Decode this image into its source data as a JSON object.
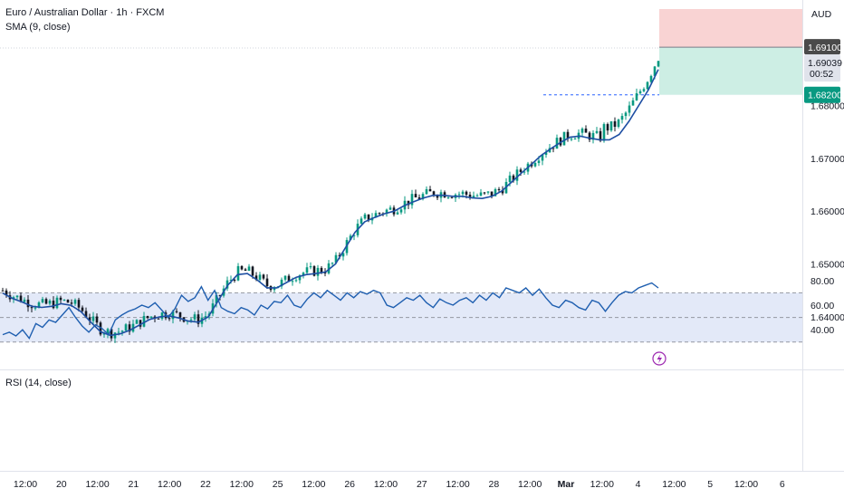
{
  "header": {
    "title": "Euro / Australian Dollar · 1h · FXCM",
    "indicator": "SMA (9, close)",
    "currency": "AUD"
  },
  "rsi": {
    "label": "RSI (14, close)",
    "ticks": [
      80,
      60,
      40
    ],
    "tick_labels": [
      "80.00",
      "60.00",
      "40.00"
    ],
    "upper": 70,
    "middle": 50,
    "lower": 30
  },
  "price_axis": {
    "ticks": [
      1.64,
      1.65,
      1.66,
      1.67,
      1.68
    ],
    "tick_labels": [
      "1.64000",
      "1.65000",
      "1.66000",
      "1.67000",
      "1.68000"
    ]
  },
  "badges": {
    "target": "1.69100",
    "current": "1.69039",
    "countdown": "00:52",
    "stop": "1.68200"
  },
  "time_axis": {
    "labels": [
      "12:00",
      "20",
      "12:00",
      "21",
      "12:00",
      "22",
      "12:00",
      "25",
      "12:00",
      "26",
      "12:00",
      "27",
      "12:00",
      "28",
      "12:00",
      "Mar",
      "12:00",
      "4",
      "12:00",
      "5",
      "12:00",
      "6"
    ]
  },
  "colors": {
    "up": "#089981",
    "down": "#131722",
    "sma": "#1e4fa3",
    "rsi_line": "#1f5fb0",
    "rsi_band": "#e3e9f8",
    "target_zone": "#f9d3d3",
    "stop_zone": "#cdeee4",
    "stop_badge": "#089981",
    "target_badge": "#4a4a4a",
    "marker": "#9c27b0"
  },
  "chart_data": [
    {
      "type": "line",
      "series": [
        {
          "name": "SMA (9, close)",
          "values": [
            1.6445,
            1.6435,
            1.6428,
            1.642,
            1.6418,
            1.642,
            1.6425,
            1.6422,
            1.641,
            1.639,
            1.6372,
            1.6365,
            1.6368,
            1.6375,
            1.6385,
            1.6395,
            1.64,
            1.6402,
            1.6398,
            1.6392,
            1.639,
            1.64,
            1.643,
            1.646,
            1.648,
            1.6482,
            1.647,
            1.6455,
            1.6455,
            1.6465,
            1.6475,
            1.648,
            1.6482,
            1.6485,
            1.65,
            1.653,
            1.656,
            1.658,
            1.6588,
            1.6595,
            1.66,
            1.661,
            1.6618,
            1.6625,
            1.663,
            1.663,
            1.6628,
            1.6628,
            1.6625,
            1.6624,
            1.6628,
            1.6638,
            1.6655,
            1.6672,
            1.6688,
            1.6705,
            1.6718,
            1.673,
            1.674,
            1.6742,
            1.6738,
            1.6735,
            1.6735,
            1.6745,
            1.677,
            1.68,
            1.683,
            1.6868
          ]
        }
      ]
    },
    {
      "type": "line",
      "title": "RSI (14, close)",
      "ylim": [
        30,
        85
      ],
      "series": [
        {
          "name": "RSI (14, close)",
          "values": [
            36,
            38,
            35,
            40,
            33,
            45,
            42,
            48,
            46,
            52,
            58,
            50,
            43,
            38,
            44,
            41,
            36,
            48,
            52,
            55,
            57,
            60,
            58,
            62,
            56,
            50,
            57,
            68,
            63,
            66,
            75,
            64,
            72,
            58,
            55,
            53,
            58,
            56,
            52,
            60,
            57,
            63,
            62,
            68,
            60,
            58,
            65,
            70,
            66,
            72,
            68,
            64,
            70,
            66,
            71,
            69,
            72,
            70,
            60,
            58,
            62,
            66,
            64,
            68,
            62,
            58,
            65,
            62,
            60,
            64,
            66,
            62,
            68,
            64,
            70,
            66,
            74,
            72,
            70,
            74,
            68,
            73,
            66,
            60,
            58,
            64,
            62,
            58,
            56,
            64,
            62,
            55,
            62,
            68,
            71,
            70,
            74,
            76,
            78,
            74
          ]
        }
      ]
    }
  ]
}
